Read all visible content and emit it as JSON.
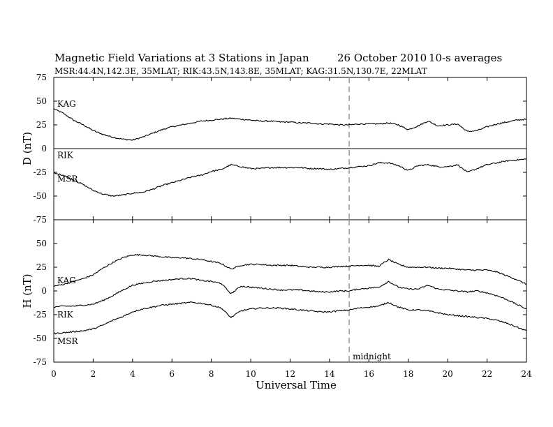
{
  "chart_data": {
    "type": "line",
    "title_left": "Magnetic Field Variations at 3 Stations in Japan",
    "title_date": "26 October 2010",
    "title_note": "10-s averages",
    "subtitle": "MSR:44.4N,142.3E, 35MLAT;  RIK:43.5N,143.8E, 35MLAT;  KAG:31.5N,130.7E, 22MLAT",
    "xlabel": "Universal Time",
    "xlim": [
      0,
      24
    ],
    "xticks": [
      0,
      2,
      4,
      6,
      8,
      10,
      12,
      14,
      16,
      18,
      20,
      22,
      24
    ],
    "marker": {
      "x": 15,
      "label": "midnight"
    },
    "panels": [
      {
        "ylabel": "D (nT)",
        "ylim": [
          -75,
          75
        ],
        "yticks": [
          75,
          50,
          25,
          0,
          -25,
          -50,
          -75
        ],
        "series": [
          {
            "name": "KAG",
            "label_y": 47,
            "x": [
              0,
              0.5,
              1,
              1.5,
              2,
              2.5,
              3,
              3.5,
              4,
              4.5,
              5,
              5.5,
              6,
              6.5,
              7,
              7.5,
              8,
              8.5,
              9,
              9.5,
              10,
              10.5,
              11,
              11.5,
              12,
              12.5,
              13,
              13.5,
              14,
              14.5,
              15,
              15.5,
              16,
              16.5,
              17,
              17.5,
              18,
              18.5,
              19,
              19.5,
              20,
              20.5,
              21,
              21.5,
              22,
              22.5,
              23,
              23.5,
              24
            ],
            "values": [
              42,
              37,
              30,
              25,
              19,
              15,
              12,
              10,
              9,
              12,
              16,
              20,
              23,
              25,
              27,
              29,
              30,
              31,
              32,
              31,
              30,
              29,
              29,
              28,
              28,
              27,
              27,
              26,
              26,
              25,
              25,
              26,
              26,
              26,
              27,
              25,
              20,
              24,
              29,
              24,
              25,
              26,
              18,
              19,
              23,
              26,
              28,
              30,
              31
            ]
          },
          {
            "name": "RIK",
            "label_y": -7,
            "x": [
              0,
              24
            ],
            "values": [
              0,
              0
            ]
          },
          {
            "name": "MSR",
            "label_y": -32,
            "x": [
              0,
              0.5,
              1,
              1.5,
              2,
              2.5,
              3,
              3.5,
              4,
              4.5,
              5,
              5.5,
              6,
              6.5,
              7,
              7.5,
              8,
              8.5,
              9,
              9.5,
              10,
              10.5,
              11,
              11.5,
              12,
              12.5,
              13,
              13.5,
              14,
              14.5,
              15,
              15.5,
              16,
              16.5,
              17,
              17.5,
              18,
              18.5,
              19,
              19.5,
              20,
              20.5,
              21,
              21.5,
              22,
              22.5,
              23,
              23.5,
              24
            ],
            "values": [
              -26,
              -28,
              -33,
              -38,
              -44,
              -48,
              -50,
              -49,
              -47,
              -46,
              -43,
              -39,
              -36,
              -33,
              -30,
              -28,
              -24,
              -22,
              -17,
              -19,
              -21,
              -21,
              -20,
              -20,
              -20,
              -20,
              -21,
              -21,
              -22,
              -21,
              -20,
              -19,
              -18,
              -15,
              -15,
              -18,
              -23,
              -18,
              -17,
              -19,
              -19,
              -17,
              -25,
              -21,
              -17,
              -15,
              -13,
              -12,
              -11
            ]
          }
        ]
      },
      {
        "ylabel": "H (nT)",
        "ylim": [
          -75,
          75
        ],
        "yticks": [
          75,
          50,
          25,
          0,
          -25,
          -50,
          -75
        ],
        "series": [
          {
            "name": "KAG",
            "label_y": 11,
            "x": [
              0,
              0.5,
              1,
              1.5,
              2,
              2.5,
              3,
              3.5,
              4,
              4.5,
              5,
              5.5,
              6,
              6.5,
              7,
              7.5,
              8,
              8.5,
              9,
              9.5,
              10,
              10.5,
              11,
              11.5,
              12,
              12.5,
              13,
              13.5,
              14,
              14.5,
              15,
              15.5,
              16,
              16.5,
              17,
              17.5,
              18,
              18.5,
              19,
              19.5,
              20,
              20.5,
              21,
              21.5,
              22,
              22.5,
              23,
              23.5,
              24
            ],
            "values": [
              5,
              7,
              10,
              13,
              17,
              24,
              30,
              35,
              38,
              38,
              37,
              36,
              35,
              35,
              34,
              33,
              31,
              29,
              23,
              27,
              28,
              28,
              27,
              27,
              27,
              26,
              25,
              25,
              25,
              26,
              26,
              27,
              27,
              26,
              33,
              28,
              25,
              25,
              25,
              24,
              24,
              23,
              22,
              22,
              22,
              20,
              16,
              12,
              7
            ]
          },
          {
            "name": "RIK",
            "label_y": -25,
            "x": [
              0,
              0.5,
              1,
              1.5,
              2,
              2.5,
              3,
              3.5,
              4,
              4.5,
              5,
              5.5,
              6,
              6.5,
              7,
              7.5,
              8,
              8.5,
              9,
              9.5,
              10,
              10.5,
              11,
              11.5,
              12,
              12.5,
              13,
              13.5,
              14,
              14.5,
              15,
              15.5,
              16,
              16.5,
              17,
              17.5,
              18,
              18.5,
              19,
              19.5,
              20,
              20.5,
              21,
              21.5,
              22,
              22.5,
              23,
              23.5,
              24
            ],
            "values": [
              -17,
              -16,
              -16,
              -15,
              -14,
              -10,
              -5,
              1,
              6,
              8,
              10,
              11,
              12,
              13,
              13,
              11,
              10,
              8,
              -3,
              5,
              4,
              3,
              2,
              1,
              1,
              1,
              0,
              -1,
              -1,
              0,
              0,
              2,
              3,
              4,
              10,
              4,
              2,
              2,
              6,
              2,
              1,
              0,
              -1,
              0,
              -2,
              -5,
              -9,
              -14,
              -19
            ]
          },
          {
            "name": "MSR",
            "label_y": -53,
            "x": [
              0,
              0.5,
              1,
              1.5,
              2,
              2.5,
              3,
              3.5,
              4,
              4.5,
              5,
              5.5,
              6,
              6.5,
              7,
              7.5,
              8,
              8.5,
              9,
              9.5,
              10,
              10.5,
              11,
              11.5,
              12,
              12.5,
              13,
              13.5,
              14,
              14.5,
              15,
              15.5,
              16,
              16.5,
              17,
              17.5,
              18,
              18.5,
              19,
              19.5,
              20,
              20.5,
              21,
              21.5,
              22,
              22.5,
              23,
              23.5,
              24
            ],
            "values": [
              -45,
              -44,
              -43,
              -42,
              -40,
              -36,
              -31,
              -27,
              -22,
              -19,
              -17,
              -15,
              -14,
              -13,
              -12,
              -13,
              -15,
              -18,
              -28,
              -21,
              -19,
              -18,
              -18,
              -18,
              -19,
              -20,
              -21,
              -22,
              -22,
              -21,
              -20,
              -18,
              -17,
              -16,
              -12,
              -17,
              -20,
              -20,
              -21,
              -23,
              -25,
              -26,
              -27,
              -28,
              -29,
              -31,
              -34,
              -38,
              -42
            ]
          }
        ]
      }
    ]
  }
}
